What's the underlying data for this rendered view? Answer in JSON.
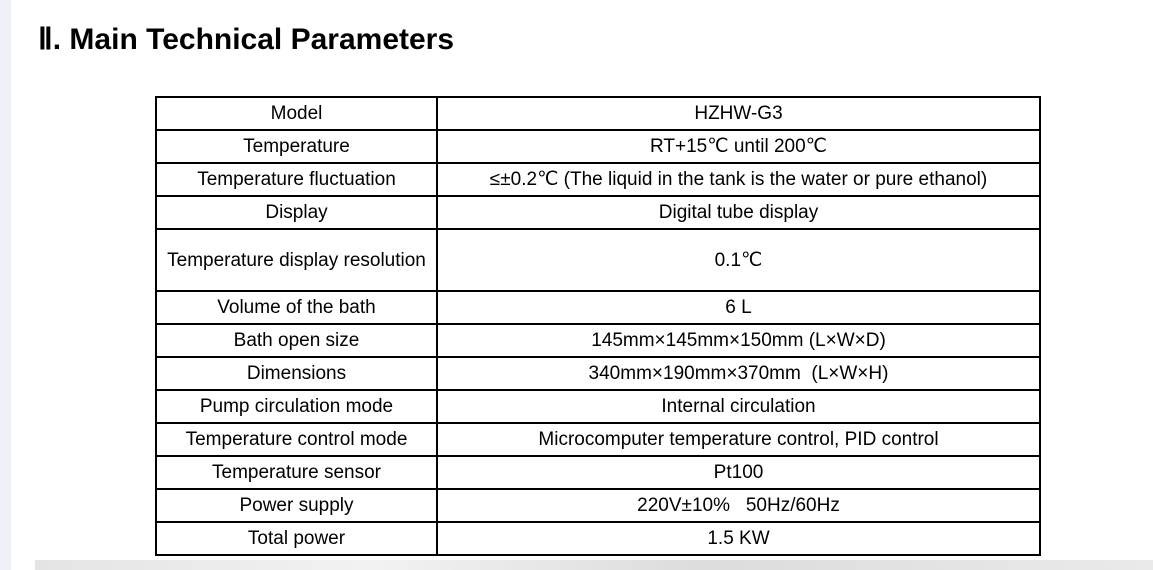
{
  "heading": "Ⅱ. Main Technical Parameters",
  "rows": [
    {
      "label": "Model",
      "value": "HZHW-G3"
    },
    {
      "label": "Temperature",
      "value": "RT+15℃ until 200℃"
    },
    {
      "label": "Temperature fluctuation",
      "value": "≤±0.2℃ (The liquid in the tank is the water or pure ethanol)"
    },
    {
      "label": "Display",
      "value": "Digital tube display"
    },
    {
      "label": "Temperature display resolution",
      "value": "0.1℃"
    },
    {
      "label": "Volume of the bath",
      "value": "6 L"
    },
    {
      "label": "Bath open size",
      "value": "145mm×145mm×150mm (L×W×D)"
    },
    {
      "label": "Dimensions",
      "value": "340mm×190mm×370mm  (L×W×H)"
    },
    {
      "label": "Pump circulation mode",
      "value": "Internal circulation"
    },
    {
      "label": "Temperature control mode",
      "value": "Microcomputer temperature control, PID control"
    },
    {
      "label": "Temperature sensor",
      "value": "Pt100"
    },
    {
      "label": "Power supply",
      "value": "220V±10%   50Hz/60Hz"
    },
    {
      "label": "Total power",
      "value": "1.5 KW"
    }
  ]
}
